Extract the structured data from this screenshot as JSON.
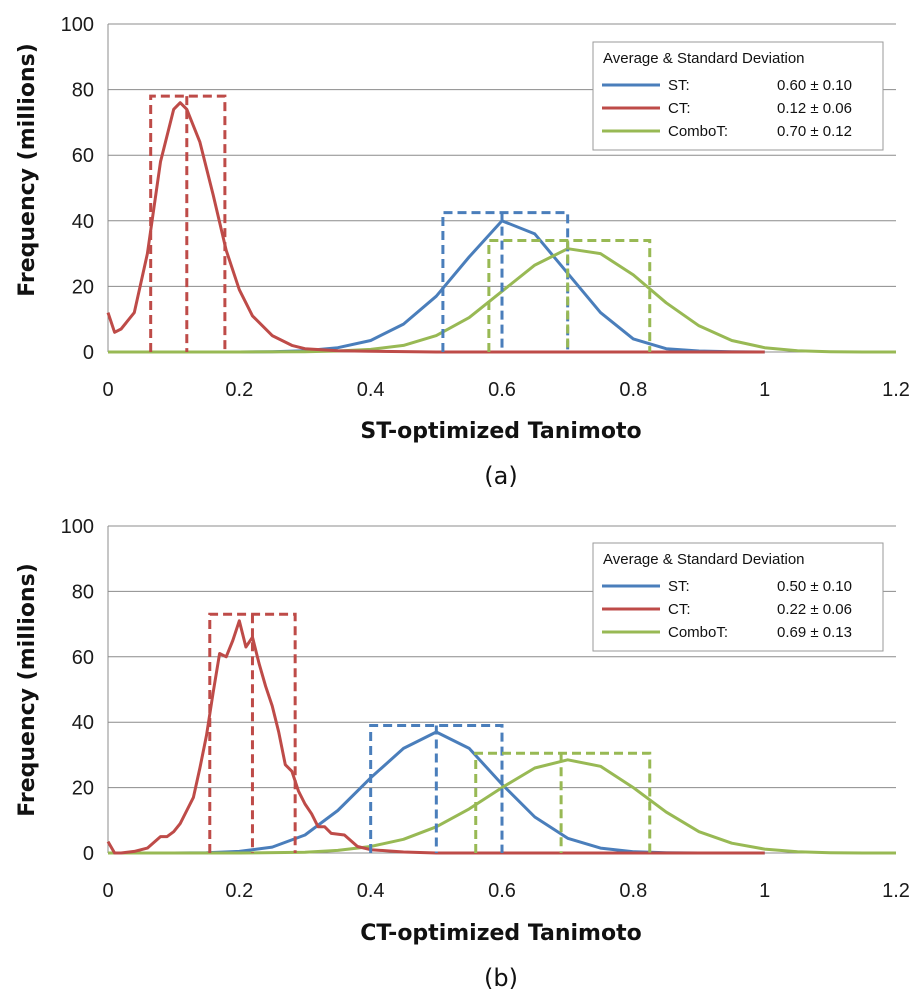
{
  "chart_data": [
    {
      "type": "line",
      "panel_label": "(a)",
      "xlabel": "ST-optimized Tanimoto",
      "ylabel": "Frequency (millions)",
      "xlim": [
        0,
        1.2
      ],
      "ylim": [
        0,
        100
      ],
      "xticks": [
        "0",
        "0.2",
        "0.4",
        "0.6",
        "0.8",
        "1",
        "1.2"
      ],
      "yticks": [
        "0",
        "20",
        "40",
        "60",
        "80",
        "100"
      ],
      "grid": "horizontal",
      "legend_position": "top-right",
      "legend_title": "Average & Standard Deviation",
      "colors": {
        "ST": "#4a7ebb",
        "CT": "#be4b48",
        "ComboT": "#98b954"
      },
      "series": [
        {
          "name": "ST:",
          "stat": "0.60 ± 0.10",
          "color": "#4a7ebb",
          "x": [
            0,
            0.05,
            0.1,
            0.15,
            0.2,
            0.25,
            0.3,
            0.35,
            0.4,
            0.45,
            0.5,
            0.55,
            0.6,
            0.65,
            0.7,
            0.75,
            0.8,
            0.85,
            0.9,
            0.95,
            1.0
          ],
          "y": [
            0,
            0,
            0,
            0,
            0,
            0.1,
            0.4,
            1.3,
            3.5,
            8.5,
            17,
            29,
            40,
            36,
            24,
            12,
            4,
            1,
            0.3,
            0.1,
            0
          ],
          "box": {
            "x0": 0.51,
            "x1": 0.7,
            "mean": 0.6,
            "top": 42.5
          }
        },
        {
          "name": "CT:",
          "stat": "0.12 ± 0.06",
          "color": "#be4b48",
          "x": [
            0,
            0.01,
            0.02,
            0.04,
            0.06,
            0.08,
            0.1,
            0.11,
            0.12,
            0.14,
            0.16,
            0.18,
            0.2,
            0.22,
            0.25,
            0.28,
            0.3,
            0.35,
            0.4,
            0.5,
            0.6,
            0.8,
            1.0
          ],
          "y": [
            12,
            6,
            7,
            12,
            30,
            58,
            74,
            76,
            74,
            64,
            48,
            31,
            19,
            11,
            5,
            2,
            1,
            0.4,
            0.2,
            0,
            0,
            0,
            0
          ],
          "box": {
            "x0": 0.065,
            "x1": 0.178,
            "mean": 0.12,
            "top": 78
          }
        },
        {
          "name": "ComboT:",
          "stat": "0.70 ± 0.12",
          "color": "#98b954",
          "x": [
            0,
            0.1,
            0.2,
            0.3,
            0.35,
            0.4,
            0.45,
            0.5,
            0.55,
            0.6,
            0.65,
            0.7,
            0.75,
            0.8,
            0.85,
            0.9,
            0.95,
            1.0,
            1.05,
            1.1,
            1.15,
            1.2
          ],
          "y": [
            0,
            0,
            0,
            0.1,
            0.3,
            0.8,
            2,
            5,
            10.5,
            18.5,
            26.5,
            31.5,
            30,
            23.5,
            15,
            8,
            3.5,
            1.3,
            0.4,
            0.1,
            0,
            0
          ],
          "box": {
            "x0": 0.58,
            "x1": 0.825,
            "mean": 0.7,
            "top": 34
          }
        }
      ]
    },
    {
      "type": "line",
      "panel_label": "(b)",
      "xlabel": "CT-optimized Tanimoto",
      "ylabel": "Frequency (millions)",
      "xlim": [
        0,
        1.2
      ],
      "ylim": [
        0,
        100
      ],
      "xticks": [
        "0",
        "0.2",
        "0.4",
        "0.6",
        "0.8",
        "1",
        "1.2"
      ],
      "yticks": [
        "0",
        "20",
        "40",
        "60",
        "80",
        "100"
      ],
      "grid": "horizontal",
      "legend_position": "top-right",
      "legend_title": "Average & Standard Deviation",
      "colors": {
        "ST": "#4a7ebb",
        "CT": "#be4b48",
        "ComboT": "#98b954"
      },
      "series": [
        {
          "name": "ST:",
          "stat": "0.50 ± 0.10",
          "color": "#4a7ebb",
          "x": [
            0,
            0.1,
            0.15,
            0.2,
            0.25,
            0.3,
            0.35,
            0.4,
            0.45,
            0.5,
            0.55,
            0.6,
            0.65,
            0.7,
            0.75,
            0.8,
            0.85,
            0.9,
            1.0
          ],
          "y": [
            0,
            0,
            0.1,
            0.5,
            1.8,
            5.5,
            13,
            23,
            32,
            37,
            32,
            21,
            11,
            4.5,
            1.5,
            0.4,
            0.1,
            0,
            0
          ],
          "box": {
            "x0": 0.4,
            "x1": 0.6,
            "mean": 0.5,
            "top": 39
          }
        },
        {
          "name": "CT:",
          "stat": "0.22 ± 0.06",
          "color": "#be4b48",
          "x": [
            0,
            0.01,
            0.02,
            0.04,
            0.06,
            0.08,
            0.09,
            0.1,
            0.11,
            0.12,
            0.13,
            0.14,
            0.15,
            0.16,
            0.17,
            0.18,
            0.19,
            0.2,
            0.21,
            0.22,
            0.23,
            0.24,
            0.25,
            0.26,
            0.27,
            0.28,
            0.29,
            0.3,
            0.31,
            0.32,
            0.33,
            0.34,
            0.36,
            0.38,
            0.4,
            0.45,
            0.5,
            0.6,
            0.8,
            1.0
          ],
          "y": [
            3.5,
            0,
            0,
            0.5,
            1.5,
            5,
            5,
            6.5,
            9,
            13,
            17,
            26,
            36,
            49,
            61,
            60,
            65,
            71,
            63,
            66,
            58,
            51,
            45,
            37,
            27,
            25,
            19,
            15,
            12,
            8,
            8,
            6,
            5.5,
            2,
            1,
            0.3,
            0,
            0,
            0,
            0
          ],
          "box": {
            "x0": 0.155,
            "x1": 0.285,
            "mean": 0.22,
            "top": 73
          }
        },
        {
          "name": "ComboT:",
          "stat": "0.69 ± 0.13",
          "color": "#98b954",
          "x": [
            0,
            0.2,
            0.3,
            0.35,
            0.4,
            0.45,
            0.5,
            0.55,
            0.6,
            0.65,
            0.7,
            0.75,
            0.8,
            0.85,
            0.9,
            0.95,
            1.0,
            1.05,
            1.1,
            1.15,
            1.2
          ],
          "y": [
            0,
            0,
            0.2,
            0.8,
            2,
            4.2,
            8,
            13.5,
            20,
            26,
            28.5,
            26.5,
            20,
            12.5,
            6.5,
            3,
            1.2,
            0.4,
            0.1,
            0,
            0
          ],
          "box": {
            "x0": 0.56,
            "x1": 0.825,
            "mean": 0.69,
            "top": 30.5
          }
        }
      ]
    }
  ]
}
